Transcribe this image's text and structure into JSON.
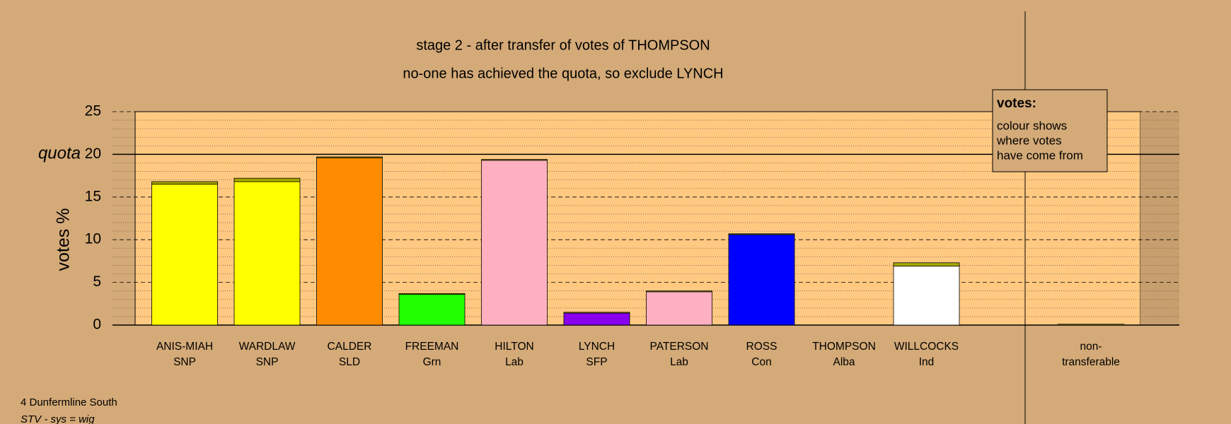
{
  "chart_data": {
    "type": "bar",
    "title": "stage 2 - after transfer of votes of THOMPSON",
    "subtitle": "no-one has achieved the quota, so exclude LYNCH",
    "y_label": "votes %",
    "categories": [
      "ANIS-MIAH",
      "WARDLAW",
      "CALDER",
      "FREEMAN",
      "HILTON",
      "LYNCH",
      "PATERSON",
      "ROSS",
      "THOMPSON",
      "WILLCOCKS",
      "non-"
    ],
    "parties": [
      "SNP",
      "SNP",
      "SLD",
      "Grn",
      "Lab",
      "SFP",
      "Lab",
      "Con",
      "Alba",
      "Ind",
      "transferable"
    ],
    "series": [
      {
        "colors": [
          "#ffff00",
          "#ffff00",
          "#ff8c00",
          "#22ff00",
          "#ffb0c0",
          "#8800ee",
          "#ffb0c0",
          "#0000ff",
          "#a8a800",
          "#ffffff",
          "#a8a800"
        ],
        "values": [
          16.5,
          16.8,
          19.6,
          3.6,
          19.3,
          1.4,
          3.9,
          10.6,
          0,
          6.9,
          0
        ]
      },
      {
        "color": "#a8a800",
        "values": [
          0.3,
          0.4,
          0.1,
          0.1,
          0.1,
          0.1,
          0.1,
          0.1,
          0,
          0.4,
          0.1
        ]
      }
    ],
    "ylim": [
      0,
      25
    ],
    "yticks": [
      0,
      5,
      10,
      15,
      20,
      25
    ],
    "quota": {
      "value": 20,
      "label": "quota"
    },
    "grid": true,
    "legend": {
      "title": "votes:",
      "lines": [
        "colour shows",
        "where votes",
        "have come from"
      ]
    },
    "footer": [
      "4 Dunfermline South",
      "STV - sys = wig"
    ]
  }
}
